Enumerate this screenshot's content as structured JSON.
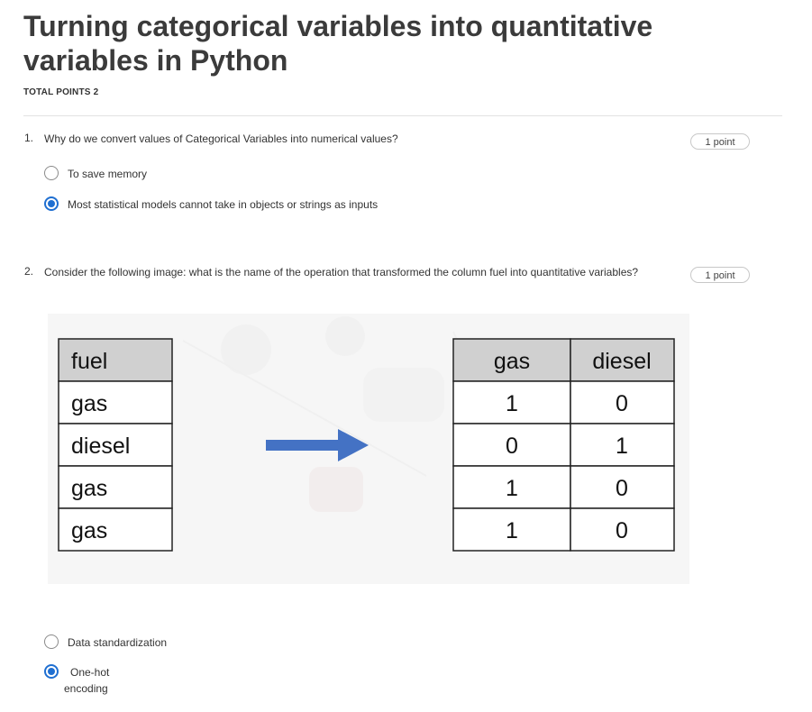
{
  "quiz": {
    "title": "Turning categorical variables into quantitative variables in Python",
    "total_points": "TOTAL POINTS 2"
  },
  "questions": [
    {
      "number": "1.",
      "text": "Why do we convert values of Categorical Variables into numerical values?",
      "points": "1 point",
      "options": [
        {
          "label": "To save memory",
          "selected": false
        },
        {
          "label": "Most statistical models cannot take in objects or strings as inputs",
          "selected": true
        }
      ]
    },
    {
      "number": "2.",
      "text": "Consider the following image: what is the name of the operation that transformed the column fuel  into quantitative variables?",
      "points": "1 point",
      "options": [
        {
          "label": "Data standardization",
          "selected": false
        },
        {
          "label_line1": "One-hot",
          "label_line2": "encoding",
          "selected": true
        }
      ]
    }
  ],
  "figure": {
    "left_table": {
      "header": "fuel",
      "rows": [
        "gas",
        "diesel",
        "gas",
        "gas"
      ]
    },
    "right_table": {
      "headers": [
        "gas",
        "diesel"
      ],
      "rows": [
        [
          "1",
          "0"
        ],
        [
          "0",
          "1"
        ],
        [
          "1",
          "0"
        ],
        [
          "1",
          "0"
        ]
      ]
    },
    "arrow_color": "#4472c4",
    "header_fill": "#d0d0d0"
  }
}
